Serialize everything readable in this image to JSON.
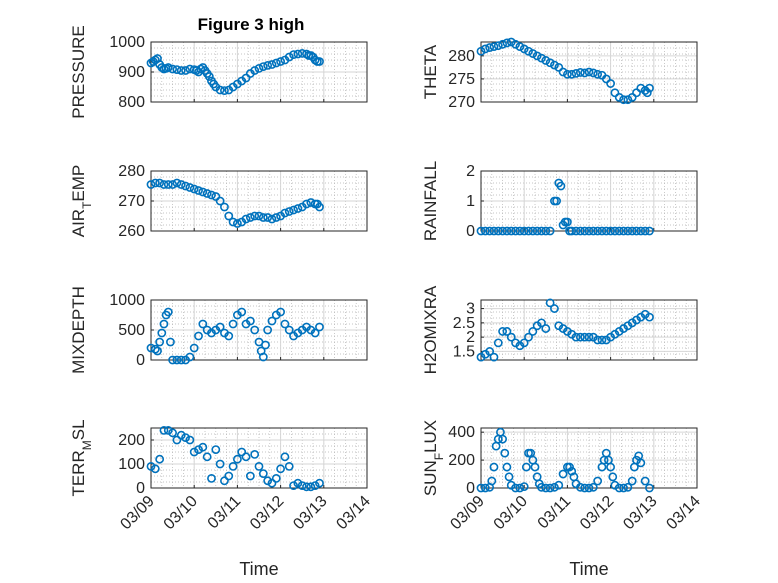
{
  "figure": {
    "title": "Figure 3 high"
  },
  "colors": {
    "marker": "#0072BD",
    "axis": "#262626",
    "grid": "#b4b4b4"
  },
  "chart_data": [
    {
      "type": "scatter",
      "ylabel": "PRESSURE",
      "yticks": [
        "800",
        "900",
        "1000"
      ],
      "ylim": [
        800,
        1000
      ],
      "xlim": [
        "03/09",
        "03/14"
      ],
      "xticks": [
        "03/09",
        "03/10",
        "03/11",
        "03/12",
        "03/13",
        "03/14"
      ],
      "xlabel": "",
      "grid": true,
      "series": [
        {
          "x": [
            0,
            0.05,
            0.1,
            0.15,
            0.2,
            0.25,
            0.3,
            0.35,
            0.4,
            0.5,
            0.6,
            0.7,
            0.8,
            0.9,
            1.0,
            1.05,
            1.1,
            1.15,
            1.2,
            1.25,
            1.3,
            1.35,
            1.4,
            1.45,
            1.5,
            1.6,
            1.7,
            1.8,
            1.9,
            2.0,
            2.1,
            2.2,
            2.3,
            2.4,
            2.5,
            2.6,
            2.7,
            2.8,
            2.9,
            3.0,
            3.1,
            3.2,
            3.3,
            3.4,
            3.5,
            3.6,
            3.65,
            3.7,
            3.75,
            3.8,
            3.85,
            3.9
          ],
          "y": [
            930,
            935,
            940,
            945,
            925,
            915,
            910,
            912,
            915,
            910,
            908,
            905,
            905,
            910,
            908,
            905,
            900,
            910,
            915,
            905,
            895,
            885,
            870,
            860,
            850,
            840,
            838,
            840,
            850,
            860,
            870,
            880,
            895,
            905,
            912,
            918,
            922,
            925,
            930,
            935,
            940,
            950,
            958,
            960,
            962,
            960,
            955,
            955,
            950,
            940,
            935,
            935
          ]
        }
      ]
    },
    {
      "type": "scatter",
      "ylabel": "THETA",
      "yticks": [
        "270",
        "275",
        "280"
      ],
      "ylim": [
        270,
        283
      ],
      "xlim": [
        "03/09",
        "03/14"
      ],
      "xticks": [
        "03/09",
        "03/10",
        "03/11",
        "03/12",
        "03/13",
        "03/14"
      ],
      "xlabel": "",
      "grid": true,
      "series": [
        {
          "x": [
            0,
            0.1,
            0.2,
            0.3,
            0.4,
            0.5,
            0.6,
            0.7,
            0.8,
            0.9,
            1.0,
            1.1,
            1.2,
            1.3,
            1.4,
            1.5,
            1.6,
            1.7,
            1.8,
            1.9,
            2.0,
            2.1,
            2.2,
            2.3,
            2.4,
            2.5,
            2.6,
            2.7,
            2.8,
            2.9,
            3.0,
            3.1,
            3.2,
            3.3,
            3.4,
            3.5,
            3.6,
            3.7,
            3.8,
            3.85,
            3.9
          ],
          "y": [
            281,
            281.5,
            281.8,
            282,
            282.2,
            282.5,
            282.8,
            283,
            282.5,
            282,
            281.5,
            281,
            280.5,
            280,
            279.5,
            279,
            278.5,
            278,
            277.5,
            276.5,
            276,
            276,
            276.2,
            276.4,
            276.3,
            276.5,
            276.3,
            276,
            275.8,
            275,
            274,
            272,
            271,
            270.5,
            270.5,
            271,
            272,
            273,
            272.5,
            272,
            273
          ]
        }
      ]
    },
    {
      "type": "scatter",
      "ylabel": "AIR_TEMP",
      "yticks": [
        "260",
        "270",
        "280"
      ],
      "ylim": [
        260,
        280
      ],
      "xlim": [
        "03/09",
        "03/14"
      ],
      "xticks": [
        "03/09",
        "03/10",
        "03/11",
        "03/12",
        "03/13",
        "03/14"
      ],
      "xlabel": "",
      "grid": true,
      "series": [
        {
          "x": [
            0,
            0.1,
            0.2,
            0.3,
            0.4,
            0.5,
            0.6,
            0.7,
            0.8,
            0.9,
            1.0,
            1.1,
            1.2,
            1.3,
            1.4,
            1.5,
            1.6,
            1.7,
            1.8,
            1.9,
            2.0,
            2.1,
            2.2,
            2.3,
            2.4,
            2.5,
            2.6,
            2.7,
            2.8,
            2.9,
            3.0,
            3.1,
            3.2,
            3.3,
            3.4,
            3.5,
            3.6,
            3.7,
            3.8,
            3.85,
            3.9
          ],
          "y": [
            275.5,
            276,
            276,
            275.5,
            275.5,
            275.5,
            276,
            275.5,
            275,
            274.5,
            274,
            273.5,
            273,
            272.5,
            272,
            271.5,
            270,
            268,
            265,
            263,
            262.5,
            263,
            264,
            264.5,
            265,
            265,
            264.5,
            264.5,
            264,
            264.5,
            265,
            266,
            266.5,
            267,
            267.5,
            268,
            269,
            269.5,
            269,
            269,
            268
          ]
        }
      ]
    },
    {
      "type": "scatter",
      "ylabel": "RAINFALL",
      "yticks": [
        "0",
        "1",
        "2"
      ],
      "ylim": [
        0,
        2
      ],
      "xlim": [
        "03/09",
        "03/14"
      ],
      "xticks": [
        "03/09",
        "03/10",
        "03/11",
        "03/12",
        "03/13",
        "03/14"
      ],
      "xlabel": "",
      "grid": true,
      "series": [
        {
          "x": [
            0,
            0.1,
            0.2,
            0.3,
            0.4,
            0.5,
            0.6,
            0.7,
            0.8,
            0.9,
            1.0,
            1.1,
            1.2,
            1.3,
            1.4,
            1.5,
            1.6,
            1.7,
            1.75,
            1.8,
            1.85,
            1.9,
            1.95,
            2.0,
            2.05,
            2.1,
            2.2,
            2.3,
            2.4,
            2.5,
            2.6,
            2.7,
            2.8,
            2.9,
            3.0,
            3.1,
            3.2,
            3.3,
            3.4,
            3.5,
            3.6,
            3.7,
            3.8,
            3.9
          ],
          "y": [
            0,
            0,
            0,
            0,
            0,
            0,
            0,
            0,
            0,
            0,
            0,
            0,
            0,
            0,
            0,
            0,
            0,
            1.0,
            1.0,
            1.6,
            1.5,
            0.2,
            0.3,
            0.3,
            0,
            0,
            0,
            0,
            0,
            0,
            0,
            0,
            0,
            0,
            0,
            0,
            0,
            0,
            0,
            0,
            0,
            0,
            0,
            0
          ]
        }
      ]
    },
    {
      "type": "scatter",
      "ylabel": "MIXDEPTH",
      "yticks": [
        "0",
        "500",
        "1000"
      ],
      "ylim": [
        0,
        1000
      ],
      "xlim": [
        "03/09",
        "03/14"
      ],
      "xticks": [
        "03/09",
        "03/10",
        "03/11",
        "03/12",
        "03/13",
        "03/14"
      ],
      "xlabel": "",
      "grid": true,
      "series": [
        {
          "x": [
            0,
            0.1,
            0.15,
            0.2,
            0.25,
            0.3,
            0.35,
            0.4,
            0.45,
            0.5,
            0.6,
            0.7,
            0.8,
            0.9,
            1.0,
            1.1,
            1.2,
            1.3,
            1.4,
            1.5,
            1.6,
            1.7,
            1.8,
            1.9,
            2.0,
            2.1,
            2.2,
            2.3,
            2.4,
            2.5,
            2.55,
            2.6,
            2.65,
            2.7,
            2.8,
            2.9,
            3.0,
            3.1,
            3.2,
            3.3,
            3.4,
            3.5,
            3.6,
            3.7,
            3.8,
            3.9
          ],
          "y": [
            200,
            180,
            150,
            300,
            450,
            600,
            750,
            800,
            300,
            0,
            0,
            0,
            0,
            50,
            200,
            400,
            600,
            500,
            450,
            500,
            550,
            450,
            400,
            600,
            750,
            800,
            600,
            650,
            500,
            300,
            150,
            50,
            250,
            500,
            650,
            750,
            800,
            600,
            500,
            400,
            450,
            500,
            550,
            500,
            450,
            550
          ]
        }
      ]
    },
    {
      "type": "scatter",
      "ylabel": "H2OMIXRA",
      "yticks": [
        "1.5",
        "2",
        "2.5",
        "3"
      ],
      "ylim": [
        1.2,
        3.3
      ],
      "xlim": [
        "03/09",
        "03/14"
      ],
      "xticks": [
        "03/09",
        "03/10",
        "03/11",
        "03/12",
        "03/13",
        "03/14"
      ],
      "xlabel": "",
      "grid": true,
      "series": [
        {
          "x": [
            0,
            0.1,
            0.2,
            0.3,
            0.4,
            0.5,
            0.6,
            0.7,
            0.8,
            0.9,
            1.0,
            1.1,
            1.2,
            1.3,
            1.4,
            1.5,
            1.6,
            1.7,
            1.8,
            1.9,
            2.0,
            2.1,
            2.2,
            2.3,
            2.4,
            2.5,
            2.6,
            2.7,
            2.8,
            2.9,
            3.0,
            3.1,
            3.2,
            3.3,
            3.4,
            3.5,
            3.6,
            3.7,
            3.8,
            3.9
          ],
          "y": [
            1.3,
            1.4,
            1.5,
            1.3,
            1.8,
            2.2,
            2.2,
            2.0,
            1.8,
            1.7,
            1.8,
            2.0,
            2.2,
            2.4,
            2.5,
            2.3,
            3.2,
            3.0,
            2.4,
            2.3,
            2.2,
            2.1,
            2.0,
            2.0,
            2.0,
            2.0,
            2.0,
            1.9,
            1.9,
            1.9,
            2.0,
            2.1,
            2.2,
            2.3,
            2.4,
            2.5,
            2.6,
            2.7,
            2.8,
            2.7
          ]
        }
      ]
    },
    {
      "type": "scatter",
      "ylabel": "TERR_MSL",
      "yticks": [
        "0",
        "100",
        "200"
      ],
      "ylim": [
        0,
        250
      ],
      "xlim": [
        "03/09",
        "03/14"
      ],
      "xticks": [
        "03/09",
        "03/10",
        "03/11",
        "03/12",
        "03/13",
        "03/14"
      ],
      "xlabel": "Time",
      "grid": true,
      "series": [
        {
          "x": [
            0,
            0.1,
            0.2,
            0.3,
            0.4,
            0.5,
            0.6,
            0.7,
            0.8,
            0.9,
            1.0,
            1.1,
            1.2,
            1.3,
            1.4,
            1.5,
            1.6,
            1.7,
            1.8,
            1.9,
            2.0,
            2.1,
            2.2,
            2.3,
            2.4,
            2.5,
            2.6,
            2.7,
            2.8,
            2.9,
            3.0,
            3.1,
            3.2,
            3.3,
            3.4,
            3.5,
            3.6,
            3.7,
            3.8,
            3.9
          ],
          "y": [
            90,
            80,
            120,
            240,
            240,
            230,
            200,
            220,
            210,
            200,
            150,
            160,
            170,
            130,
            40,
            160,
            100,
            30,
            50,
            90,
            120,
            150,
            130,
            50,
            140,
            90,
            60,
            30,
            20,
            40,
            80,
            130,
            90,
            10,
            20,
            10,
            5,
            5,
            10,
            20
          ]
        }
      ]
    },
    {
      "type": "scatter",
      "ylabel": "SUN_FLUX",
      "yticks": [
        "0",
        "200",
        "400"
      ],
      "ylim": [
        0,
        430
      ],
      "xlim": [
        "03/09",
        "03/14"
      ],
      "xticks": [
        "03/09",
        "03/10",
        "03/11",
        "03/12",
        "03/13",
        "03/14"
      ],
      "xlabel": "Time",
      "grid": true,
      "series": [
        {
          "x": [
            0,
            0.1,
            0.2,
            0.25,
            0.3,
            0.35,
            0.4,
            0.45,
            0.5,
            0.55,
            0.6,
            0.65,
            0.7,
            0.8,
            0.9,
            1.0,
            1.05,
            1.1,
            1.15,
            1.2,
            1.25,
            1.3,
            1.35,
            1.4,
            1.5,
            1.6,
            1.7,
            1.8,
            1.9,
            2.0,
            2.05,
            2.1,
            2.15,
            2.2,
            2.3,
            2.4,
            2.5,
            2.6,
            2.7,
            2.8,
            2.85,
            2.9,
            2.95,
            3.0,
            3.05,
            3.1,
            3.2,
            3.3,
            3.4,
            3.5,
            3.55,
            3.6,
            3.65,
            3.7,
            3.8,
            3.9
          ],
          "y": [
            0,
            0,
            5,
            50,
            150,
            300,
            350,
            400,
            350,
            250,
            150,
            80,
            20,
            0,
            0,
            10,
            150,
            250,
            250,
            200,
            150,
            80,
            30,
            5,
            0,
            0,
            5,
            20,
            100,
            150,
            150,
            120,
            80,
            30,
            5,
            0,
            0,
            5,
            50,
            150,
            200,
            250,
            200,
            150,
            80,
            20,
            0,
            0,
            5,
            50,
            150,
            200,
            230,
            180,
            50,
            0
          ]
        }
      ]
    }
  ]
}
